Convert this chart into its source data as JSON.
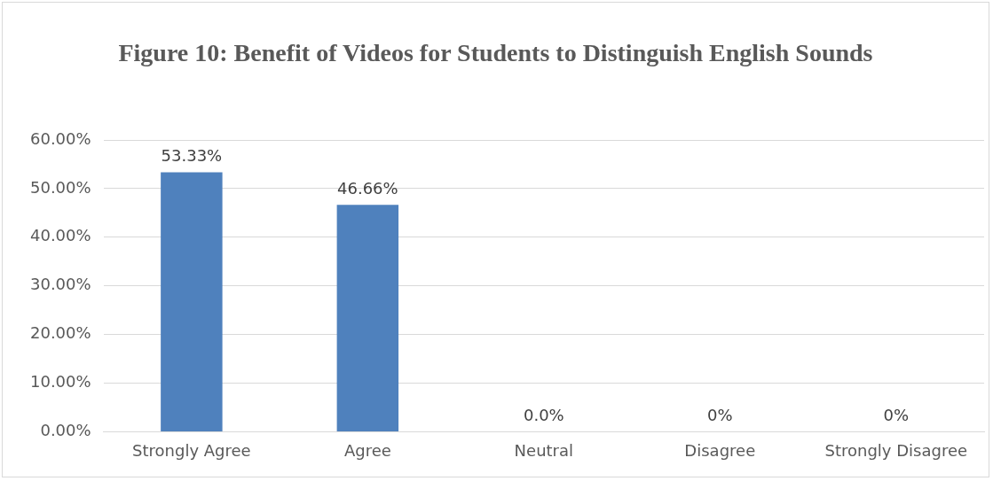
{
  "chart_data": {
    "type": "bar",
    "title": "Figure 10: Benefit of Videos for Students to Distinguish English Sounds",
    "categories": [
      "Strongly Agree",
      "Agree",
      "Neutral",
      "Disagree",
      "Strongly Disagree"
    ],
    "values": [
      53.33,
      46.66,
      0,
      0,
      0
    ],
    "color": "#4f81bd",
    "value_labels": [
      "53.33%",
      "46.66%",
      "0.0%",
      "0%",
      "0%"
    ],
    "ylim": [
      0,
      60
    ],
    "yticks": [
      {
        "value": 0,
        "label": "0.00%"
      },
      {
        "value": 10,
        "label": "10.00%"
      },
      {
        "value": 20,
        "label": "20.00%"
      },
      {
        "value": 30,
        "label": "30.00%"
      },
      {
        "value": 40,
        "label": "40.00%"
      },
      {
        "value": 50,
        "label": "50.00%"
      },
      {
        "value": 60,
        "label": "60.00%"
      }
    ],
    "grid": "y",
    "legend": false
  }
}
